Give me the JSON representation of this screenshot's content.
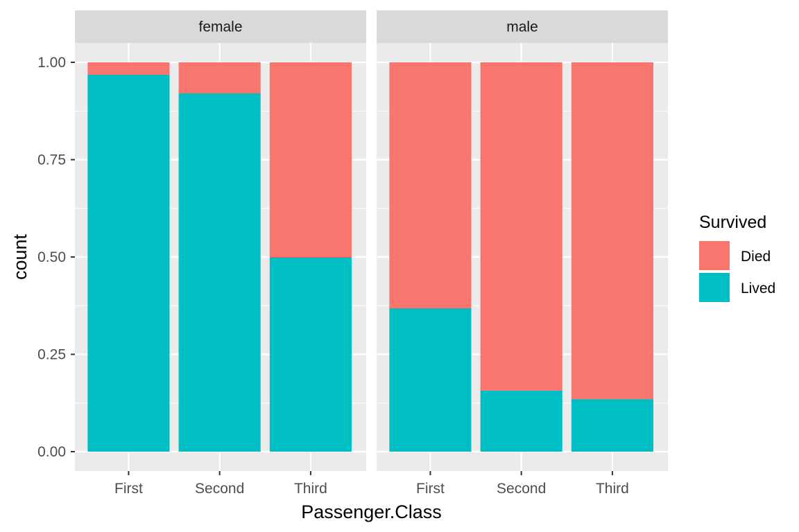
{
  "chart_data": {
    "type": "bar",
    "stacked": true,
    "position": "fill",
    "facet_var": "Sex",
    "panels": [
      {
        "label": "female",
        "categories": [
          "First",
          "Second",
          "Third"
        ],
        "series": [
          {
            "name": "Died",
            "values": [
              0.032,
              0.079,
              0.5
            ]
          },
          {
            "name": "Lived",
            "values": [
              0.968,
              0.921,
              0.5
            ]
          }
        ]
      },
      {
        "label": "male",
        "categories": [
          "First",
          "Second",
          "Third"
        ],
        "series": [
          {
            "name": "Died",
            "values": [
              0.631,
              0.843,
              0.865
            ]
          },
          {
            "name": "Lived",
            "values": [
              0.369,
              0.157,
              0.135
            ]
          }
        ]
      }
    ],
    "xlabel": "Passenger.Class",
    "ylabel": "count",
    "ylim": [
      0,
      1
    ],
    "y_ticks": [
      "0.00",
      "0.25",
      "0.50",
      "0.75",
      "1.00"
    ],
    "legend": {
      "title": "Survived",
      "position": "right",
      "entries": [
        {
          "name": "Died",
          "color": "#F8766D"
        },
        {
          "name": "Lived",
          "color": "#00BFC4"
        }
      ]
    },
    "grid": true,
    "colors": {
      "panel_bg": "#EBEBEB",
      "strip_bg": "#D9D9D9",
      "grid_major": "#FFFFFF",
      "Died": "#F8766D",
      "Lived": "#00BFC4"
    }
  }
}
